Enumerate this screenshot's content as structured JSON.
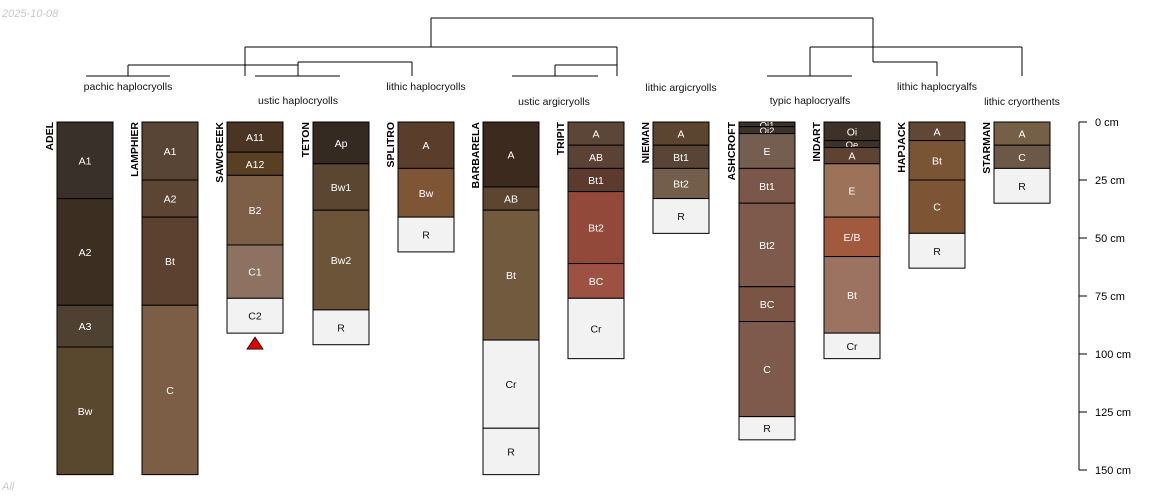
{
  "date_stamp": "2025-10-08",
  "footer_label": "All",
  "depth_axis": {
    "unit": "cm",
    "max": 150,
    "ticks": [
      {
        "value": 0,
        "label": "0 cm"
      },
      {
        "value": 25,
        "label": "25 cm"
      },
      {
        "value": 50,
        "label": "50 cm"
      },
      {
        "value": 75,
        "label": "75 cm"
      },
      {
        "value": 100,
        "label": "100 cm"
      },
      {
        "value": 125,
        "label": "125 cm"
      },
      {
        "value": 150,
        "label": "150 cm"
      }
    ]
  },
  "groups": [
    {
      "label": "pachic haplocryolls"
    },
    {
      "label": "ustic haplocryolls"
    },
    {
      "label": "lithic haplocryolls"
    },
    {
      "label": "ustic argicryolls"
    },
    {
      "label": "lithic argicryolls"
    },
    {
      "label": "typic haplocryalfs"
    },
    {
      "label": "lithic haplocryalfs"
    },
    {
      "label": "lithic cryorthents"
    }
  ],
  "profiles": [
    {
      "name": "ADEL",
      "horizons": [
        {
          "name": "A1",
          "top": 0,
          "bottom": 33,
          "color": "#383029"
        },
        {
          "name": "A2",
          "top": 33,
          "bottom": 79,
          "color": "#3c2e20"
        },
        {
          "name": "A3",
          "top": 79,
          "bottom": 97,
          "color": "#4f4132"
        },
        {
          "name": "Bw",
          "top": 97,
          "bottom": 152,
          "color": "#59472e"
        }
      ]
    },
    {
      "name": "LAMPHIER",
      "horizons": [
        {
          "name": "A1",
          "top": 0,
          "bottom": 25,
          "color": "#594535"
        },
        {
          "name": "A2",
          "top": 25,
          "bottom": 41,
          "color": "#5c4633"
        },
        {
          "name": "Bt",
          "top": 41,
          "bottom": 79,
          "color": "#5c4130"
        },
        {
          "name": "C",
          "top": 79,
          "bottom": 152,
          "color": "#7b5e45"
        }
      ]
    },
    {
      "name": "SAWCREEK",
      "horizons": [
        {
          "name": "A11",
          "top": 0,
          "bottom": 13,
          "color": "#4a3524"
        },
        {
          "name": "A12",
          "top": 13,
          "bottom": 23,
          "color": "#594023"
        },
        {
          "name": "B2",
          "top": 23,
          "bottom": 53,
          "color": "#7d5f48"
        },
        {
          "name": "C1",
          "top": 53,
          "bottom": 76,
          "color": "#8d7261"
        },
        {
          "name": "C2",
          "top": 76,
          "bottom": 91,
          "color": "#f2f2f2"
        }
      ],
      "truncated": true
    },
    {
      "name": "TETON",
      "horizons": [
        {
          "name": "Ap",
          "top": 0,
          "bottom": 18,
          "color": "#352a22"
        },
        {
          "name": "Bw1",
          "top": 18,
          "bottom": 38,
          "color": "#5a4631"
        },
        {
          "name": "Bw2",
          "top": 38,
          "bottom": 81,
          "color": "#6c5439"
        },
        {
          "name": "R",
          "top": 81,
          "bottom": 96,
          "color": "#f2f2f2"
        }
      ]
    },
    {
      "name": "SPLITRO",
      "horizons": [
        {
          "name": "A",
          "top": 0,
          "bottom": 20,
          "color": "#5a3e2b"
        },
        {
          "name": "Bw",
          "top": 20,
          "bottom": 41,
          "color": "#7e5535"
        },
        {
          "name": "R",
          "top": 41,
          "bottom": 56,
          "color": "#f2f2f2"
        }
      ]
    },
    {
      "name": "BARBARELA",
      "horizons": [
        {
          "name": "A",
          "top": 0,
          "bottom": 28,
          "color": "#3d2a1e"
        },
        {
          "name": "AB",
          "top": 28,
          "bottom": 38,
          "color": "#5c4531"
        },
        {
          "name": "Bt",
          "top": 38,
          "bottom": 94,
          "color": "#715a3d"
        },
        {
          "name": "Cr",
          "top": 94,
          "bottom": 132,
          "color": "#f2f2f2"
        },
        {
          "name": "R",
          "top": 132,
          "bottom": 152,
          "color": "#f2f2f2"
        }
      ]
    },
    {
      "name": "TRIPIT",
      "horizons": [
        {
          "name": "A",
          "top": 0,
          "bottom": 10,
          "color": "#5c4638"
        },
        {
          "name": "AB",
          "top": 10,
          "bottom": 20,
          "color": "#5c4235"
        },
        {
          "name": "Bt1",
          "top": 20,
          "bottom": 30,
          "color": "#5c3b2e"
        },
        {
          "name": "Bt2",
          "top": 30,
          "bottom": 61,
          "color": "#93493a"
        },
        {
          "name": "BC",
          "top": 61,
          "bottom": 76,
          "color": "#9c5143"
        },
        {
          "name": "Cr",
          "top": 76,
          "bottom": 102,
          "color": "#f2f2f2"
        }
      ]
    },
    {
      "name": "NIEMAN",
      "horizons": [
        {
          "name": "A",
          "top": 0,
          "bottom": 10,
          "color": "#5c4530"
        },
        {
          "name": "Bt1",
          "top": 10,
          "bottom": 20,
          "color": "#594535"
        },
        {
          "name": "Bt2",
          "top": 20,
          "bottom": 33,
          "color": "#735e4c"
        },
        {
          "name": "R",
          "top": 33,
          "bottom": 48,
          "color": "#f2f2f2"
        }
      ]
    },
    {
      "name": "ASHCROFT",
      "horizons": [
        {
          "name": "Oi1",
          "top": 0,
          "bottom": 2,
          "color": "#3d3128"
        },
        {
          "name": "Oi2",
          "top": 2,
          "bottom": 5,
          "color": "#3d3128"
        },
        {
          "name": "E",
          "top": 5,
          "bottom": 20,
          "color": "#735e50"
        },
        {
          "name": "Bt1",
          "top": 20,
          "bottom": 35,
          "color": "#7a5748"
        },
        {
          "name": "Bt2",
          "top": 35,
          "bottom": 71,
          "color": "#7d5a4b"
        },
        {
          "name": "BC",
          "top": 71,
          "bottom": 86,
          "color": "#7a5445"
        },
        {
          "name": "C",
          "top": 86,
          "bottom": 127,
          "color": "#7d5a4c"
        },
        {
          "name": "R",
          "top": 127,
          "bottom": 137,
          "color": "#f2f2f2"
        }
      ]
    },
    {
      "name": "INDART",
      "horizons": [
        {
          "name": "Oi",
          "top": 0,
          "bottom": 8,
          "color": "#3d3128"
        },
        {
          "name": "Oe",
          "top": 8,
          "bottom": 11,
          "color": "#3d3128"
        },
        {
          "name": "A",
          "top": 11,
          "bottom": 18,
          "color": "#5e4333"
        },
        {
          "name": "E",
          "top": 18,
          "bottom": 41,
          "color": "#9c7258"
        },
        {
          "name": "E/B",
          "top": 41,
          "bottom": 58,
          "color": "#a15a3d"
        },
        {
          "name": "Bt",
          "top": 58,
          "bottom": 91,
          "color": "#9c7261"
        },
        {
          "name": "Cr",
          "top": 91,
          "bottom": 102,
          "color": "#f2f2f2"
        }
      ]
    },
    {
      "name": "HAPJACK",
      "horizons": [
        {
          "name": "A",
          "top": 0,
          "bottom": 8,
          "color": "#614835"
        },
        {
          "name": "Bt",
          "top": 8,
          "bottom": 25,
          "color": "#7a5535"
        },
        {
          "name": "C",
          "top": 25,
          "bottom": 48,
          "color": "#7d5535"
        },
        {
          "name": "R",
          "top": 48,
          "bottom": 63,
          "color": "#f2f2f2"
        }
      ]
    },
    {
      "name": "STARMAN",
      "horizons": [
        {
          "name": "A",
          "top": 0,
          "bottom": 10,
          "color": "#736047"
        },
        {
          "name": "C",
          "top": 10,
          "bottom": 20,
          "color": "#6b5846"
        },
        {
          "name": "R",
          "top": 20,
          "bottom": 35,
          "color": "#f2f2f2"
        }
      ]
    }
  ]
}
